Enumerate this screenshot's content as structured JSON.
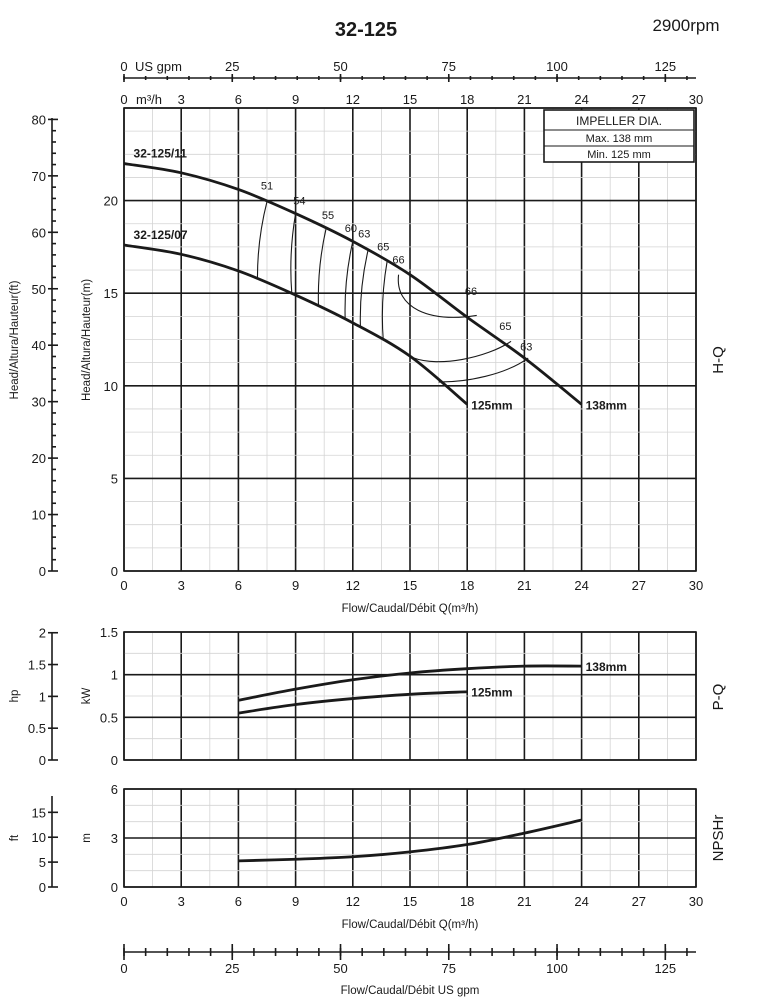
{
  "header": {
    "title": "32-125",
    "speed": "2900rpm"
  },
  "top_axes": {
    "usgpm_label": "US gpm",
    "usgpm_ticks": [
      "0",
      "25",
      "50",
      "75",
      "100",
      "125"
    ],
    "m3h_label": "m³/h",
    "m3h_ticks": [
      "0",
      "3",
      "6",
      "9",
      "12",
      "15",
      "18",
      "21",
      "24",
      "27",
      "30"
    ]
  },
  "impeller_box": {
    "title": "IMPELLER DIA.",
    "max": "Max.  138 mm",
    "min": "Min.  125 mm"
  },
  "chart_data": [
    {
      "id": "hq",
      "type": "line",
      "side_label": "H-Q",
      "xlabel": "Flow/Caudal/Débit Q(m³/h)",
      "ylabel_m": "Head/Altura/Hauteur(m)",
      "ylabel_ft": "Head/Altura/Hauteur(ft)",
      "xlim": [
        0,
        30
      ],
      "ylim": [
        0,
        25
      ],
      "x_ticks": [
        "0",
        "3",
        "6",
        "9",
        "12",
        "15",
        "18",
        "21",
        "24",
        "27",
        "30"
      ],
      "y_ticks_m": [
        "0",
        "5",
        "10",
        "15",
        "20"
      ],
      "y_ticks_ft": [
        "0",
        "10",
        "20",
        "30",
        "40",
        "50",
        "60",
        "70",
        "80"
      ],
      "series": [
        {
          "name": "138mm",
          "model_label": "32-125/11",
          "x": [
            0,
            3,
            6,
            9,
            12,
            15,
            18,
            21,
            24
          ],
          "y": [
            22.0,
            21.5,
            20.6,
            19.3,
            17.8,
            16.0,
            13.7,
            11.5,
            9.0
          ]
        },
        {
          "name": "125mm",
          "model_label": "32-125/07",
          "x": [
            0,
            3,
            6,
            9,
            12,
            15,
            18
          ],
          "y": [
            17.6,
            17.1,
            16.2,
            14.9,
            13.4,
            11.6,
            9.0
          ]
        }
      ],
      "efficiency_labels": [
        {
          "label": "51",
          "x": 7.5,
          "y": 20.6
        },
        {
          "label": "54",
          "x": 9.2,
          "y": 19.8
        },
        {
          "label": "55",
          "x": 10.7,
          "y": 19.0
        },
        {
          "label": "60",
          "x": 11.9,
          "y": 18.3
        },
        {
          "label": "63",
          "x": 12.6,
          "y": 18.0
        },
        {
          "label": "65",
          "x": 13.6,
          "y": 17.3
        },
        {
          "label": "66",
          "x": 14.4,
          "y": 16.6
        },
        {
          "label": "66",
          "x": 18.2,
          "y": 14.9
        },
        {
          "label": "65",
          "x": 20.0,
          "y": 13.0
        },
        {
          "label": "63",
          "x": 21.1,
          "y": 11.9
        }
      ]
    },
    {
      "id": "pq",
      "type": "line",
      "side_label": "P-Q",
      "ylabel_kw": "kW",
      "ylabel_hp": "hp",
      "xlim": [
        0,
        30
      ],
      "ylim": [
        0,
        1.5
      ],
      "y_ticks_kw": [
        "0",
        "0.5",
        "1",
        "1.5"
      ],
      "y_ticks_hp": [
        "0",
        "0.5",
        "1",
        "1.5",
        "2"
      ],
      "series": [
        {
          "name": "138mm",
          "x": [
            6,
            9,
            12,
            15,
            18,
            21,
            24
          ],
          "y": [
            0.7,
            0.83,
            0.94,
            1.02,
            1.07,
            1.1,
            1.1
          ]
        },
        {
          "name": "125mm",
          "x": [
            6,
            9,
            12,
            15,
            18
          ],
          "y": [
            0.55,
            0.65,
            0.72,
            0.77,
            0.8
          ]
        }
      ]
    },
    {
      "id": "npshr",
      "type": "line",
      "side_label": "NPSHr",
      "xlabel": "Flow/Caudal/Débit Q(m³/h)",
      "ylabel_m": "m",
      "ylabel_ft": "ft",
      "xlim": [
        0,
        30
      ],
      "ylim": [
        0,
        6
      ],
      "x_ticks": [
        "0",
        "3",
        "6",
        "9",
        "12",
        "15",
        "18",
        "21",
        "24",
        "27",
        "30"
      ],
      "y_ticks_m": [
        "0",
        "3",
        "6"
      ],
      "y_ticks_ft": [
        "0",
        "5",
        "10",
        "15"
      ],
      "series": [
        {
          "name": "NPSHr",
          "x": [
            6,
            9,
            12,
            15,
            18,
            21,
            24
          ],
          "y": [
            1.6,
            1.7,
            1.85,
            2.15,
            2.6,
            3.3,
            4.1
          ]
        }
      ]
    }
  ],
  "bottom_axis": {
    "xlabel": "Flow/Caudal/Débit  US gpm",
    "ticks": [
      "0",
      "25",
      "50",
      "75",
      "100",
      "125"
    ]
  }
}
